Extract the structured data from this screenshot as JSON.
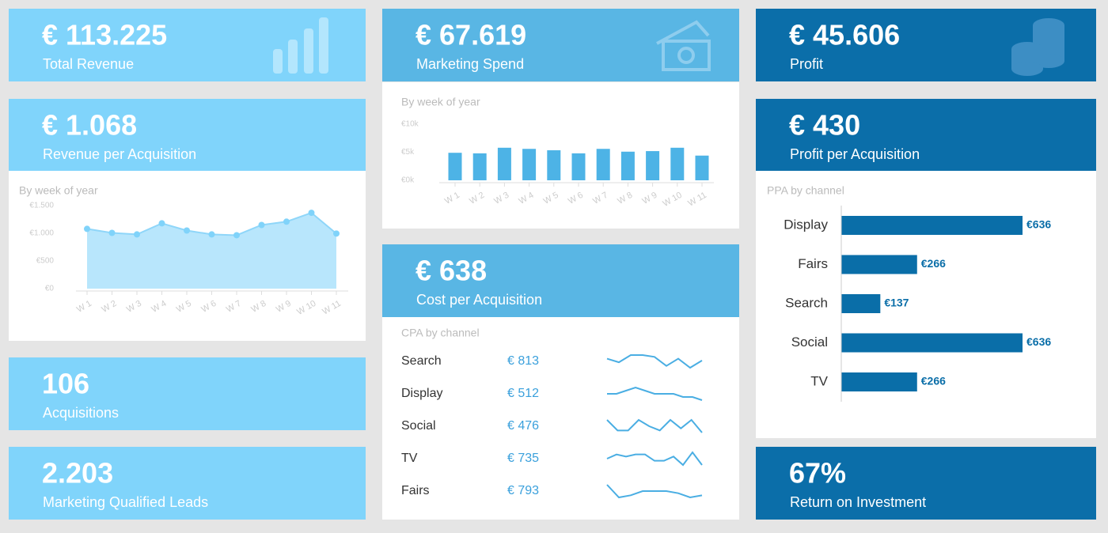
{
  "kpis": [
    {
      "value": "€ 113.225",
      "label": "Total Revenue"
    },
    {
      "value": "€ 67.619",
      "label": "Marketing Spend"
    },
    {
      "value": "€ 45.606",
      "label": "Profit"
    },
    {
      "value": "€ 1.068",
      "label": "Revenue per Acquisition"
    },
    {
      "value": "€ 430",
      "label": "Profit per Acquisition"
    },
    {
      "value": "€ 638",
      "label": "Cost per Acquisition"
    },
    {
      "value": "106",
      "label": "Acquisitions"
    },
    {
      "value": "2.203",
      "label": "Marketing Qualified Leads"
    },
    {
      "value": "67%",
      "label": "Return on Investment"
    }
  ],
  "chart_data": [
    {
      "type": "area",
      "title": "By week of year",
      "categories": [
        "W 1",
        "W 2",
        "W 3",
        "W 4",
        "W 5",
        "W 6",
        "W 7",
        "W 8",
        "W 9",
        "W 10",
        "W 11"
      ],
      "values": [
        1080,
        1007,
        980,
        1180,
        1050,
        980,
        965,
        1150,
        1210,
        1370,
        995
      ],
      "color": "#8fd6f9",
      "ylim": [
        0,
        1500
      ],
      "yticks": [
        {
          "value": 0,
          "label": "€0"
        },
        {
          "value": 500,
          "label": "€500"
        },
        {
          "value": 1000,
          "label": "€1.000"
        },
        {
          "value": 1500,
          "label": "€1.500"
        }
      ]
    },
    {
      "type": "bar",
      "title": "By week of year",
      "categories": [
        "W 1",
        "W 2",
        "W 3",
        "W 4",
        "W 5",
        "W 6",
        "W 7",
        "W 8",
        "W 9",
        "W 10",
        "W 11"
      ],
      "values": [
        4900,
        4800,
        5800,
        5600,
        5350,
        4800,
        5600,
        5100,
        5200,
        5800,
        4400
      ],
      "color": "#4db3e6",
      "ylim": [
        0,
        10000
      ],
      "yticks": [
        {
          "value": 0,
          "label": "€0k"
        },
        {
          "value": 5000,
          "label": "€5k"
        },
        {
          "value": 10000,
          "label": "€10k"
        }
      ]
    },
    {
      "type": "barh",
      "title": "PPA by channel",
      "categories": [
        "Display",
        "Fairs",
        "Search",
        "Social",
        "TV"
      ],
      "values": [
        636,
        266,
        137,
        636,
        266
      ],
      "value_labels": [
        "€636",
        "€266",
        "€137",
        "€636",
        "€266"
      ],
      "color": "#0a6ea8"
    }
  ],
  "cpa_table": {
    "title": "CPA by channel",
    "rows": [
      {
        "channel": "Search",
        "value": "€ 813",
        "trend": [
          6,
          4,
          8,
          8,
          7,
          2,
          6,
          1,
          5
        ]
      },
      {
        "channel": "Display",
        "value": "€ 512",
        "trend": [
          4,
          4,
          5,
          6,
          5,
          4,
          4,
          4,
          3,
          3,
          2
        ]
      },
      {
        "channel": "Social",
        "value": "€ 476",
        "trend": [
          8,
          3,
          3,
          8,
          5,
          3,
          8,
          4,
          8,
          2
        ]
      },
      {
        "channel": "TV",
        "value": "€ 735",
        "trend": [
          4,
          6,
          5,
          6,
          6,
          3,
          3,
          5,
          1,
          7,
          1
        ]
      },
      {
        "channel": "Fairs",
        "value": "€ 793",
        "trend": [
          8,
          2,
          3,
          5,
          5,
          5,
          4,
          2,
          3
        ]
      }
    ]
  }
}
